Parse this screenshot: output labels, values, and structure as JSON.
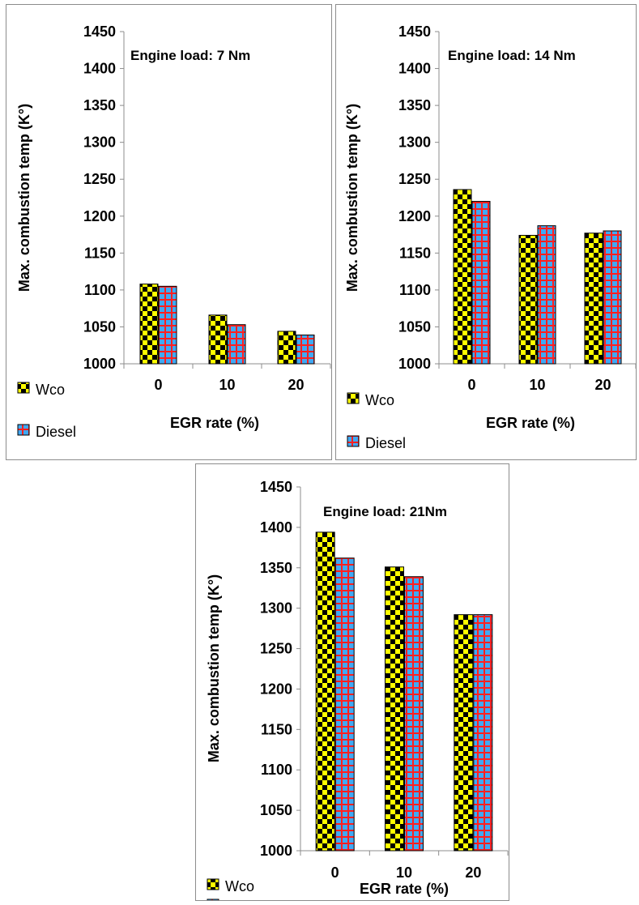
{
  "colors": {
    "wco_primary": "#ffff00",
    "wco_secondary": "#000000",
    "diesel_primary": "#3fa9f5",
    "diesel_secondary": "#ff2020",
    "axis": "#8c8c8c",
    "bar_outline": "#000000"
  },
  "legend": [
    {
      "name": "Wco",
      "pattern": "checker-yellow-black"
    },
    {
      "name": "Diesel",
      "pattern": "grid-blue-red"
    }
  ],
  "chart_data": [
    {
      "type": "bar",
      "title": "Engine load: 7 Nm",
      "xlabel": "EGR rate (%)",
      "ylabel": "Max. combustion temp (K°)",
      "categories": [
        "0",
        "10",
        "20"
      ],
      "ylim": [
        1000,
        1450
      ],
      "yticks": [
        "1000",
        "1050",
        "1100",
        "1150",
        "1200",
        "1250",
        "1300",
        "1350",
        "1400",
        "1450"
      ],
      "series": [
        {
          "name": "Wco",
          "values": [
            1108,
            1066,
            1044
          ]
        },
        {
          "name": "Diesel",
          "values": [
            1105,
            1053,
            1039
          ]
        }
      ],
      "grid": false,
      "legend_position": "left"
    },
    {
      "type": "bar",
      "title": "Engine load: 14 Nm",
      "xlabel": "EGR rate (%)",
      "ylabel": "Max. combustion temp (K°)",
      "categories": [
        "0",
        "10",
        "20"
      ],
      "ylim": [
        1000,
        1450
      ],
      "yticks": [
        "1000",
        "1050",
        "1100",
        "1150",
        "1200",
        "1250",
        "1300",
        "1350",
        "1400",
        "1450"
      ],
      "series": [
        {
          "name": "Wco",
          "values": [
            1236,
            1174,
            1177
          ]
        },
        {
          "name": "Diesel",
          "values": [
            1220,
            1187,
            1180
          ]
        }
      ],
      "grid": false,
      "legend_position": "bottom-left"
    },
    {
      "type": "bar",
      "title": "Engine load: 21Nm",
      "xlabel": "EGR rate (%)",
      "ylabel": "Max. combustion temp (K°)",
      "categories": [
        "0",
        "10",
        "20"
      ],
      "ylim": [
        1000,
        1450
      ],
      "yticks": [
        "1000",
        "1050",
        "1100",
        "1150",
        "1200",
        "1250",
        "1300",
        "1350",
        "1400",
        "1450"
      ],
      "series": [
        {
          "name": "Wco",
          "values": [
            1394,
            1351,
            1292
          ]
        },
        {
          "name": "Diesel",
          "values": [
            1362,
            1339,
            1292
          ]
        }
      ],
      "grid": false,
      "legend_position": "bottom-left"
    }
  ]
}
